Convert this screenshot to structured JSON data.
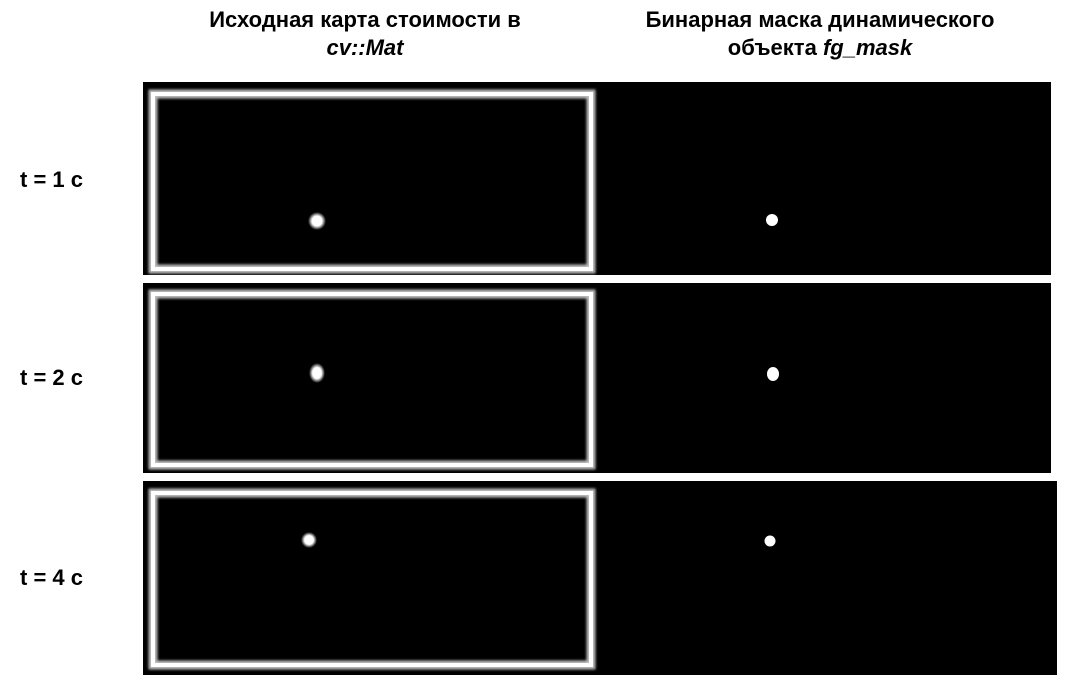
{
  "headers": {
    "left": {
      "line1": "Исходная карта стоимости в",
      "code": "cv::Mat"
    },
    "right": {
      "line1": "Бинарная маска динамического",
      "prefix": "объекта ",
      "code": "fg_mask"
    }
  },
  "rows": [
    {
      "label": "t = 1 с"
    },
    {
      "label": "t = 2 с"
    },
    {
      "label": "t = 4 с"
    }
  ],
  "colors": {
    "background": "#000000",
    "foreground": "#ffffff",
    "page": "#ffffff"
  }
}
